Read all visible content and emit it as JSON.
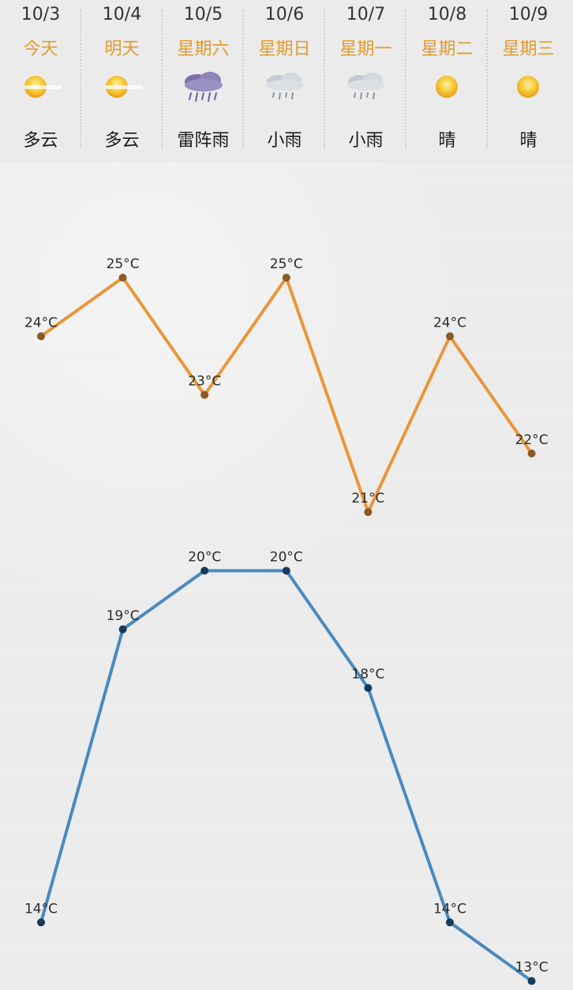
{
  "days": [
    {
      "date": "10/3",
      "weekday": "今天",
      "condition": "多云",
      "icon": "sun-haze-icon"
    },
    {
      "date": "10/4",
      "weekday": "明天",
      "condition": "多云",
      "icon": "sun-haze-icon"
    },
    {
      "date": "10/5",
      "weekday": "星期六",
      "condition": "雷阵雨",
      "icon": "thunder-rain-icon"
    },
    {
      "date": "10/6",
      "weekday": "星期日",
      "condition": "小雨",
      "icon": "light-rain-icon"
    },
    {
      "date": "10/7",
      "weekday": "星期一",
      "condition": "小雨",
      "icon": "light-rain-icon"
    },
    {
      "date": "10/8",
      "weekday": "星期二",
      "condition": "晴",
      "icon": "sun-icon"
    },
    {
      "date": "10/9",
      "weekday": "星期三",
      "condition": "晴",
      "icon": "sun-icon"
    }
  ],
  "colors": {
    "weekday": "#e49a2b",
    "high_line": "#e8973a",
    "high_point": "#8a5a24",
    "low_line": "#4a8ac0",
    "low_point": "#173a5c",
    "sun": "#f4b400"
  },
  "chart_data": {
    "type": "line",
    "x": [
      "10/3",
      "10/4",
      "10/5",
      "10/6",
      "10/7",
      "10/8",
      "10/9"
    ],
    "unit": "°C",
    "ylim": [
      13,
      25
    ],
    "series": [
      {
        "values": [
          24,
          25,
          23,
          25,
          21,
          24,
          22
        ],
        "labels": [
          "24°C",
          "25°C",
          "23°C",
          "25°C",
          "21°C",
          "24°C",
          "22°C"
        ]
      },
      {
        "values": [
          14,
          19,
          20,
          20,
          18,
          14,
          13
        ],
        "labels": [
          "14°C",
          "19°C",
          "20°C",
          "20°C",
          "18°C",
          "14°C",
          "13°C"
        ]
      }
    ]
  }
}
